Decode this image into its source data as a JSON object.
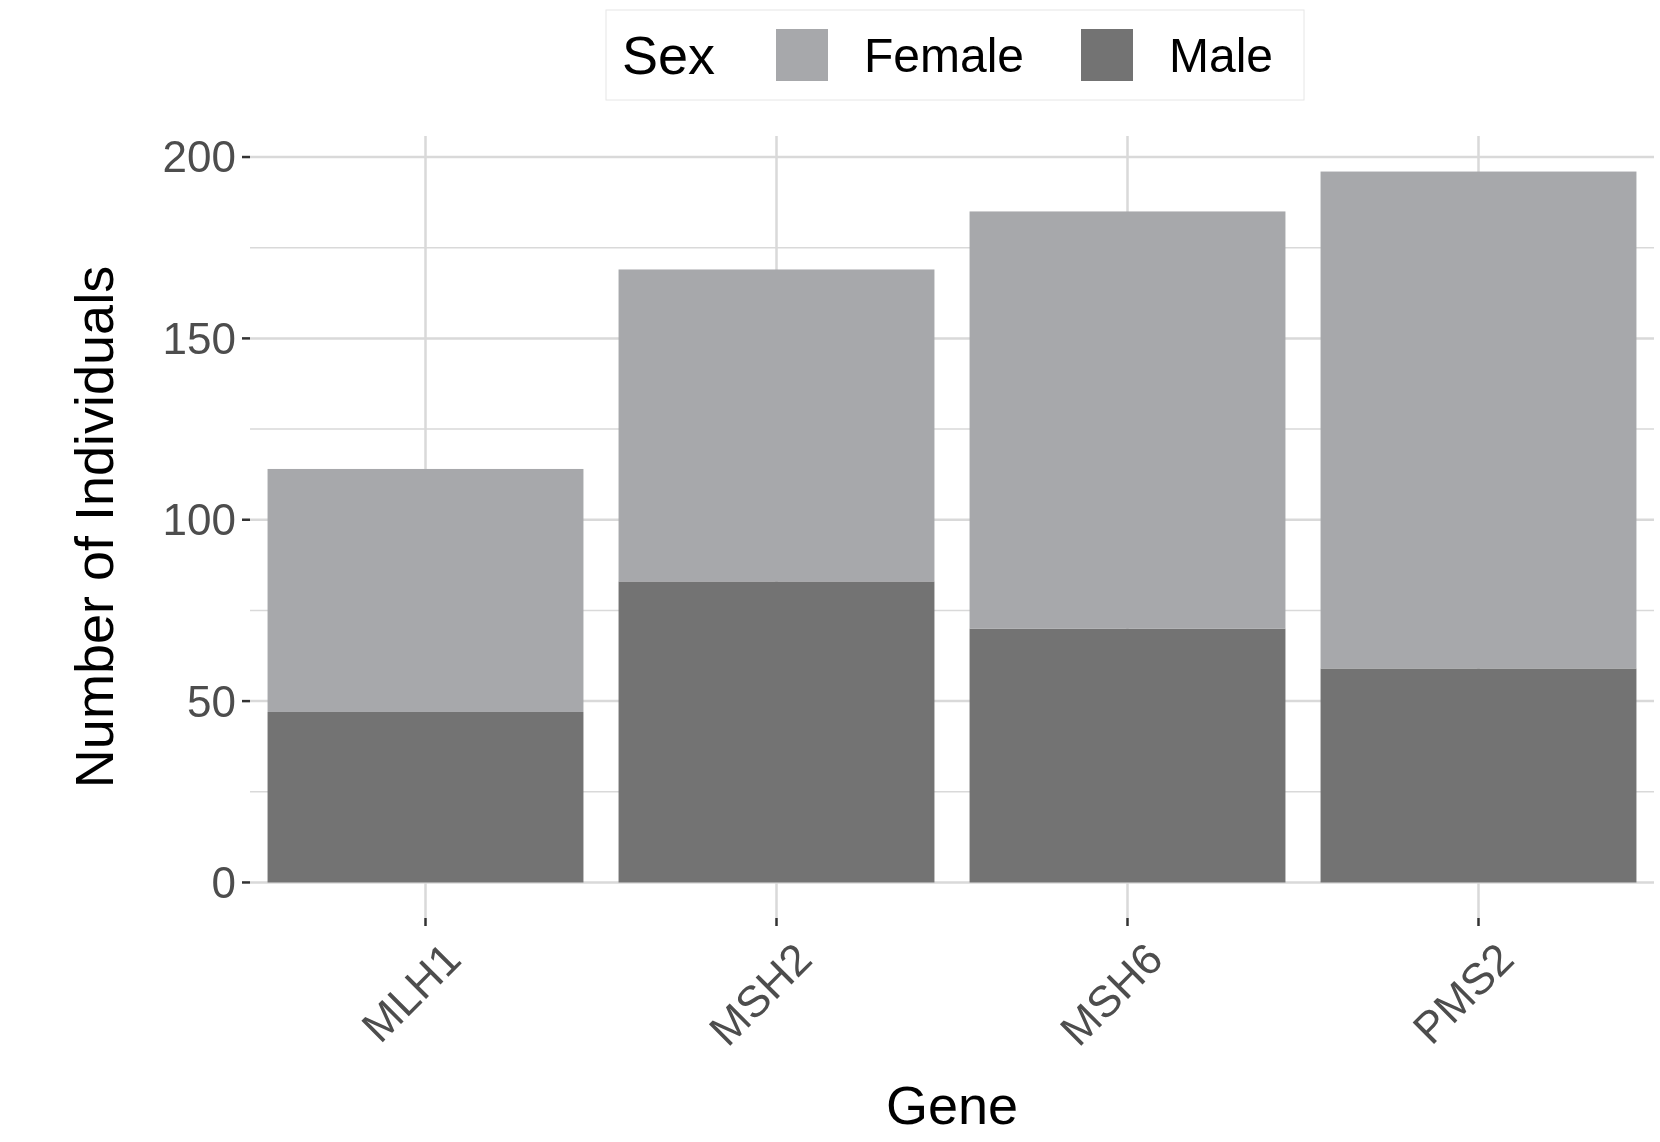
{
  "chart_data": {
    "type": "bar",
    "stacked": true,
    "xlabel": "Gene",
    "ylabel": "Number of Individuals",
    "legend_title": "Sex",
    "legend": "top",
    "categories": [
      "MLH1",
      "MSH2",
      "MSH6",
      "PMS2"
    ],
    "series": [
      {
        "name": "Male",
        "color": "#737373",
        "values": [
          47,
          83,
          70,
          59
        ]
      },
      {
        "name": "Female",
        "color": "#a7a8ab",
        "values": [
          67,
          86,
          115,
          137
        ]
      }
    ],
    "ylim": [
      -9.8,
      205.8
    ],
    "yticks": [
      0,
      {
        "value": 25,
        "label": null
      },
      50,
      {
        "value": 75,
        "label": null
      },
      100,
      {
        "value": 125,
        "label": null
      },
      150,
      {
        "value": 175,
        "label": null
      },
      200
    ],
    "grid": true
  }
}
